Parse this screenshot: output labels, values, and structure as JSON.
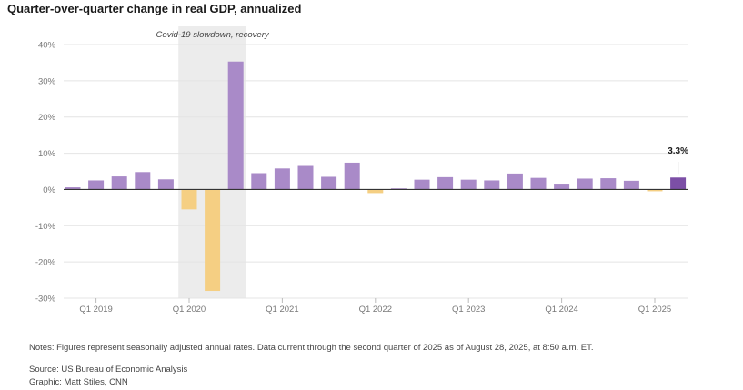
{
  "chart_data": {
    "type": "bar",
    "title": "Quarter-over-quarter change in real GDP, annualized",
    "xlabel": "",
    "ylabel": "",
    "ylim": [
      -30,
      40
    ],
    "y_ticks": [
      40,
      30,
      20,
      10,
      0,
      -10,
      -20,
      -30
    ],
    "y_tick_labels": [
      "40%",
      "30%",
      "20%",
      "10%",
      "0%",
      "-10%",
      "-20%",
      "-30%"
    ],
    "x_tick_labels": [
      {
        "index": 1,
        "label": "Q1 2019"
      },
      {
        "index": 5,
        "label": "Q1 2020"
      },
      {
        "index": 9,
        "label": "Q1 2021"
      },
      {
        "index": 13,
        "label": "Q1 2022"
      },
      {
        "index": 17,
        "label": "Q1 2023"
      },
      {
        "index": 21,
        "label": "Q1 2024"
      },
      {
        "index": 25,
        "label": "Q1 2025"
      }
    ],
    "values": [
      0.6,
      2.5,
      3.6,
      4.8,
      2.8,
      -5.5,
      -28.0,
      35.3,
      4.5,
      5.8,
      6.5,
      3.5,
      7.4,
      -1.0,
      0.3,
      2.7,
      3.4,
      2.7,
      2.5,
      4.4,
      3.2,
      1.6,
      3.0,
      3.1,
      2.4,
      -0.5,
      3.3
    ],
    "highlight": {
      "range": [
        5,
        7
      ],
      "label": "Covid-19 slowdown, recovery"
    },
    "callout": {
      "index": 26,
      "label": "3.3%"
    },
    "colors": {
      "positive": "#a98ac8",
      "negative": "#f5cf83",
      "latest": "#7c4fa6",
      "highlight_band": "#ececec",
      "grid": "#e4e4e4",
      "zero_line": "#333333",
      "tick_text": "#777777"
    }
  },
  "notes": {
    "line1": "Notes: Figures represent seasonally adjusted annual rates. Data current through the second quarter of 2025 as of August 28, 2025, at 8:50 a.m. ET.",
    "source": "Source: US Bureau of Economic Analysis",
    "graphic": "Graphic: Matt Stiles, CNN"
  }
}
